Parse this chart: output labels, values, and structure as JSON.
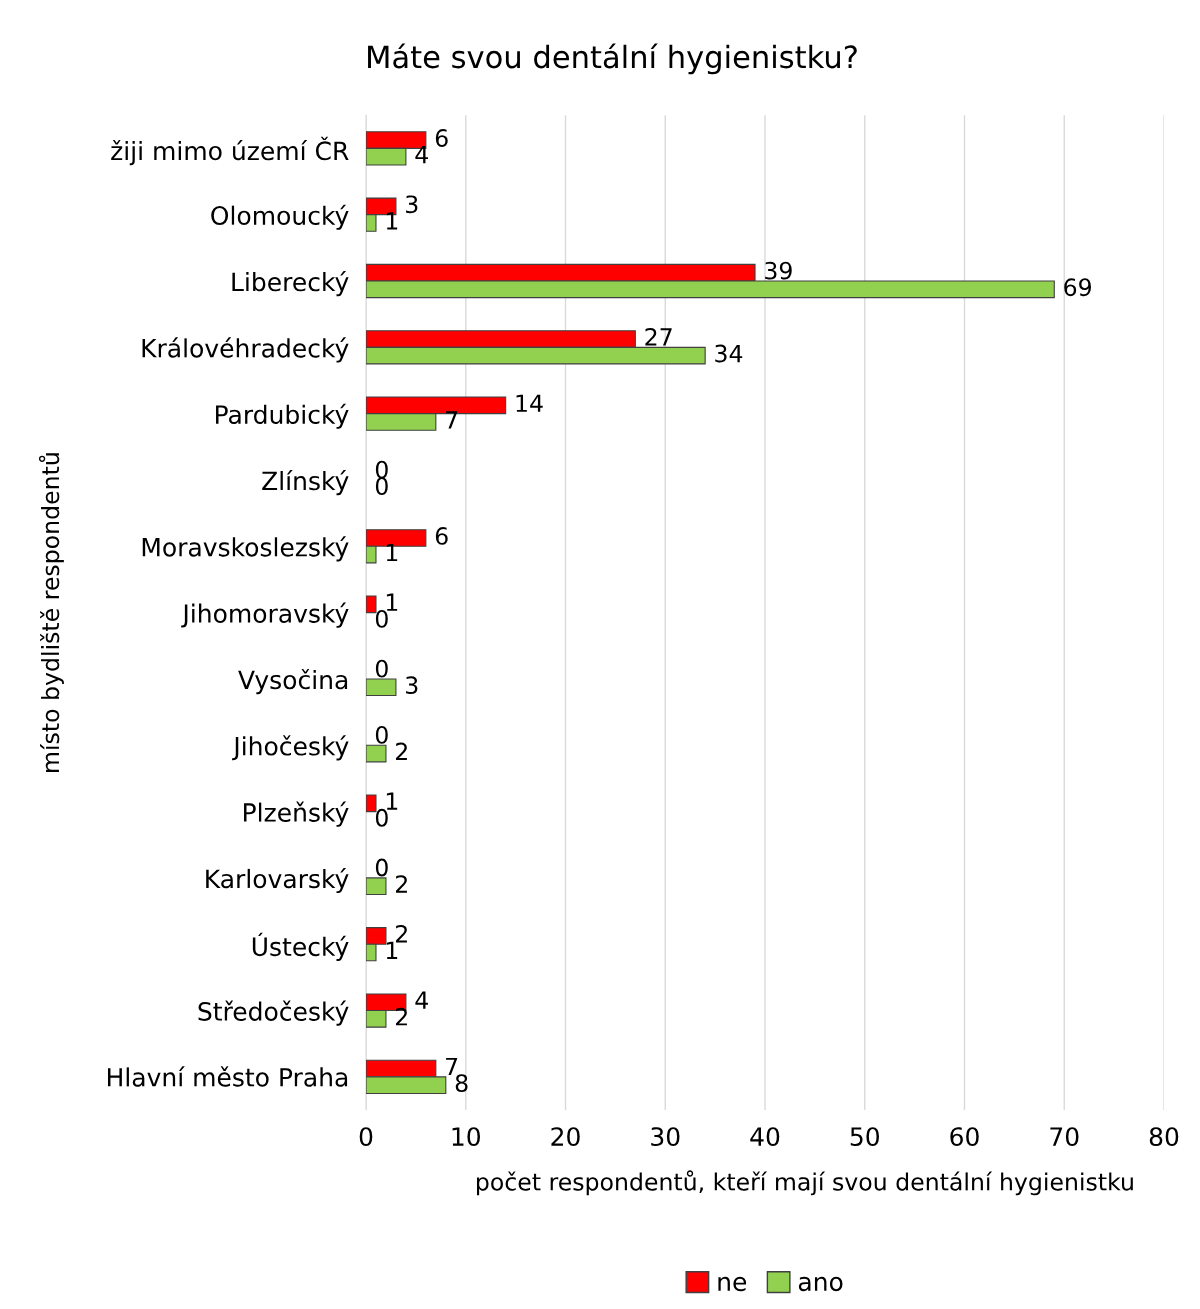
{
  "chart_data": {
    "type": "bar",
    "orientation": "horizontal",
    "title": "Máte svou dentální hygienistku?",
    "xlabel": "počet respondentů, kteří mají svou dentální hygienistku",
    "ylabel": "místo bydliště respondentů",
    "categories": [
      "žiji mimo území ČR",
      "Olomoucký",
      "Liberecký",
      "Královéhradecký",
      "Pardubický",
      "Zlínský",
      "Moravskoslezský",
      "Jihomoravský",
      "Vysočina",
      "Jihočeský",
      "Plzeňský",
      "Karlovarský",
      "Ústecký",
      "Středočeský",
      "Hlavní město Praha"
    ],
    "series": [
      {
        "name": "ne",
        "color": "#ff0000",
        "values": [
          6,
          3,
          39,
          27,
          14,
          0,
          6,
          1,
          0,
          0,
          1,
          0,
          2,
          4,
          7
        ]
      },
      {
        "name": "ano",
        "color": "#92d050",
        "values": [
          4,
          1,
          69,
          34,
          7,
          0,
          1,
          0,
          3,
          2,
          0,
          2,
          1,
          2,
          8
        ]
      }
    ],
    "xlim": [
      0,
      80
    ],
    "xticks": [
      0,
      10,
      20,
      30,
      40,
      50,
      60,
      70,
      80
    ],
    "grid": "x",
    "legend": "bottom",
    "data_labels": true
  }
}
